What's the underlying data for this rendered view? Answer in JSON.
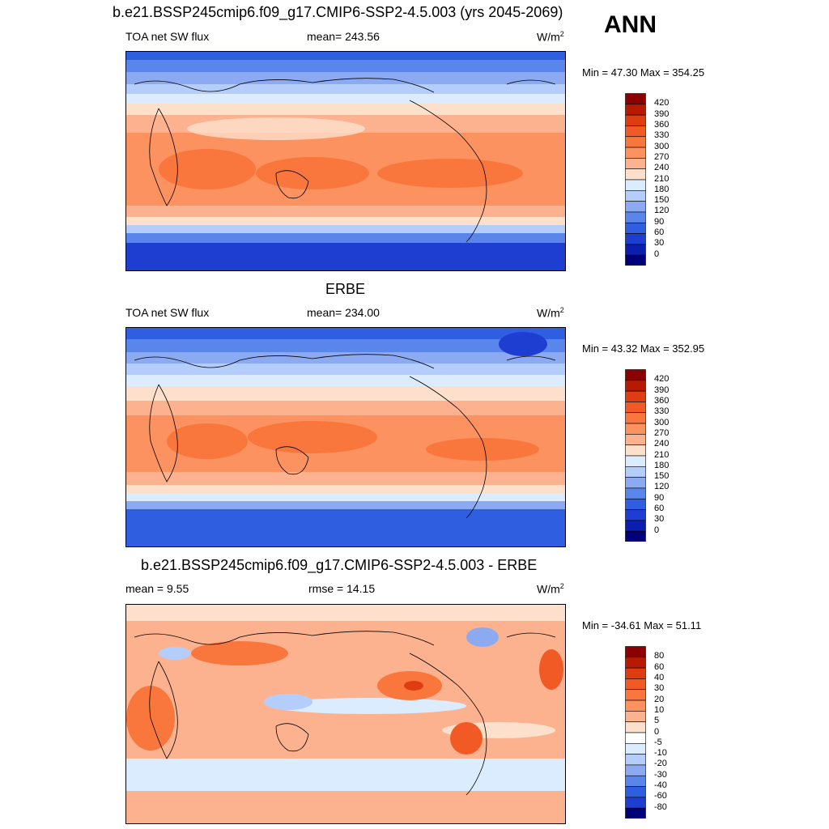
{
  "season": "ANN",
  "panels": [
    {
      "title": "b.e21.BSSP245cmip6.f09_g17.CMIP6-SSP2-4.5.003 (yrs 2045-2069)",
      "left": "TOA net SW flux",
      "center": "mean= 243.56",
      "units_base": "W/m",
      "units_exp": "2",
      "minmax": "Min =  47.30 Max = 354.25",
      "colorbar_labels": [
        "420",
        "390",
        "360",
        "330",
        "300",
        "270",
        "240",
        "210",
        "180",
        "150",
        "120",
        "90",
        "60",
        "30",
        "0"
      ],
      "field_range": {
        "min": 47.3,
        "max": 354.25,
        "mean": 243.56
      }
    },
    {
      "title": "ERBE",
      "left": "TOA net SW flux",
      "center": "mean= 234.00",
      "units_base": "W/m",
      "units_exp": "2",
      "minmax": "Min =  43.32 Max = 352.95",
      "colorbar_labels": [
        "420",
        "390",
        "360",
        "330",
        "300",
        "270",
        "240",
        "210",
        "180",
        "150",
        "120",
        "90",
        "60",
        "30",
        "0"
      ],
      "field_range": {
        "min": 43.32,
        "max": 352.95,
        "mean": 234.0
      }
    },
    {
      "title": "b.e21.BSSP245cmip6.f09_g17.CMIP6-SSP2-4.5.003 - ERBE",
      "left": "mean =   9.55",
      "center": "rmse =  14.15",
      "units_base": "W/m",
      "units_exp": "2",
      "minmax": "Min = -34.61 Max =  51.11",
      "colorbar_labels": [
        "80",
        "60",
        "40",
        "30",
        "20",
        "10",
        "5",
        "0",
        "-5",
        "-10",
        "-20",
        "-30",
        "-40",
        "-60",
        "-80"
      ],
      "field_range": {
        "min": -34.61,
        "max": 51.11,
        "mean": 9.55,
        "rmse": 14.15
      }
    }
  ],
  "colors": {
    "flux_scale": [
      "#8b0000",
      "#b81a00",
      "#dd3d10",
      "#f25a25",
      "#f9763d",
      "#fc9260",
      "#fdb28f",
      "#fde0cc",
      "#dcecff",
      "#b4cdfa",
      "#8caaf2",
      "#5a85ea",
      "#2f5fe0",
      "#1e3ed2",
      "#0b1eb0",
      "#00007a"
    ],
    "diff_scale": [
      "#8b0000",
      "#b81a00",
      "#dd3d10",
      "#f25a25",
      "#f9763d",
      "#fc9260",
      "#fdb28f",
      "#fde0cc",
      "#ffffff",
      "#dcecff",
      "#b4cdfa",
      "#8caaf2",
      "#5a85ea",
      "#2f5fe0",
      "#1e3ed2",
      "#00007a"
    ]
  }
}
